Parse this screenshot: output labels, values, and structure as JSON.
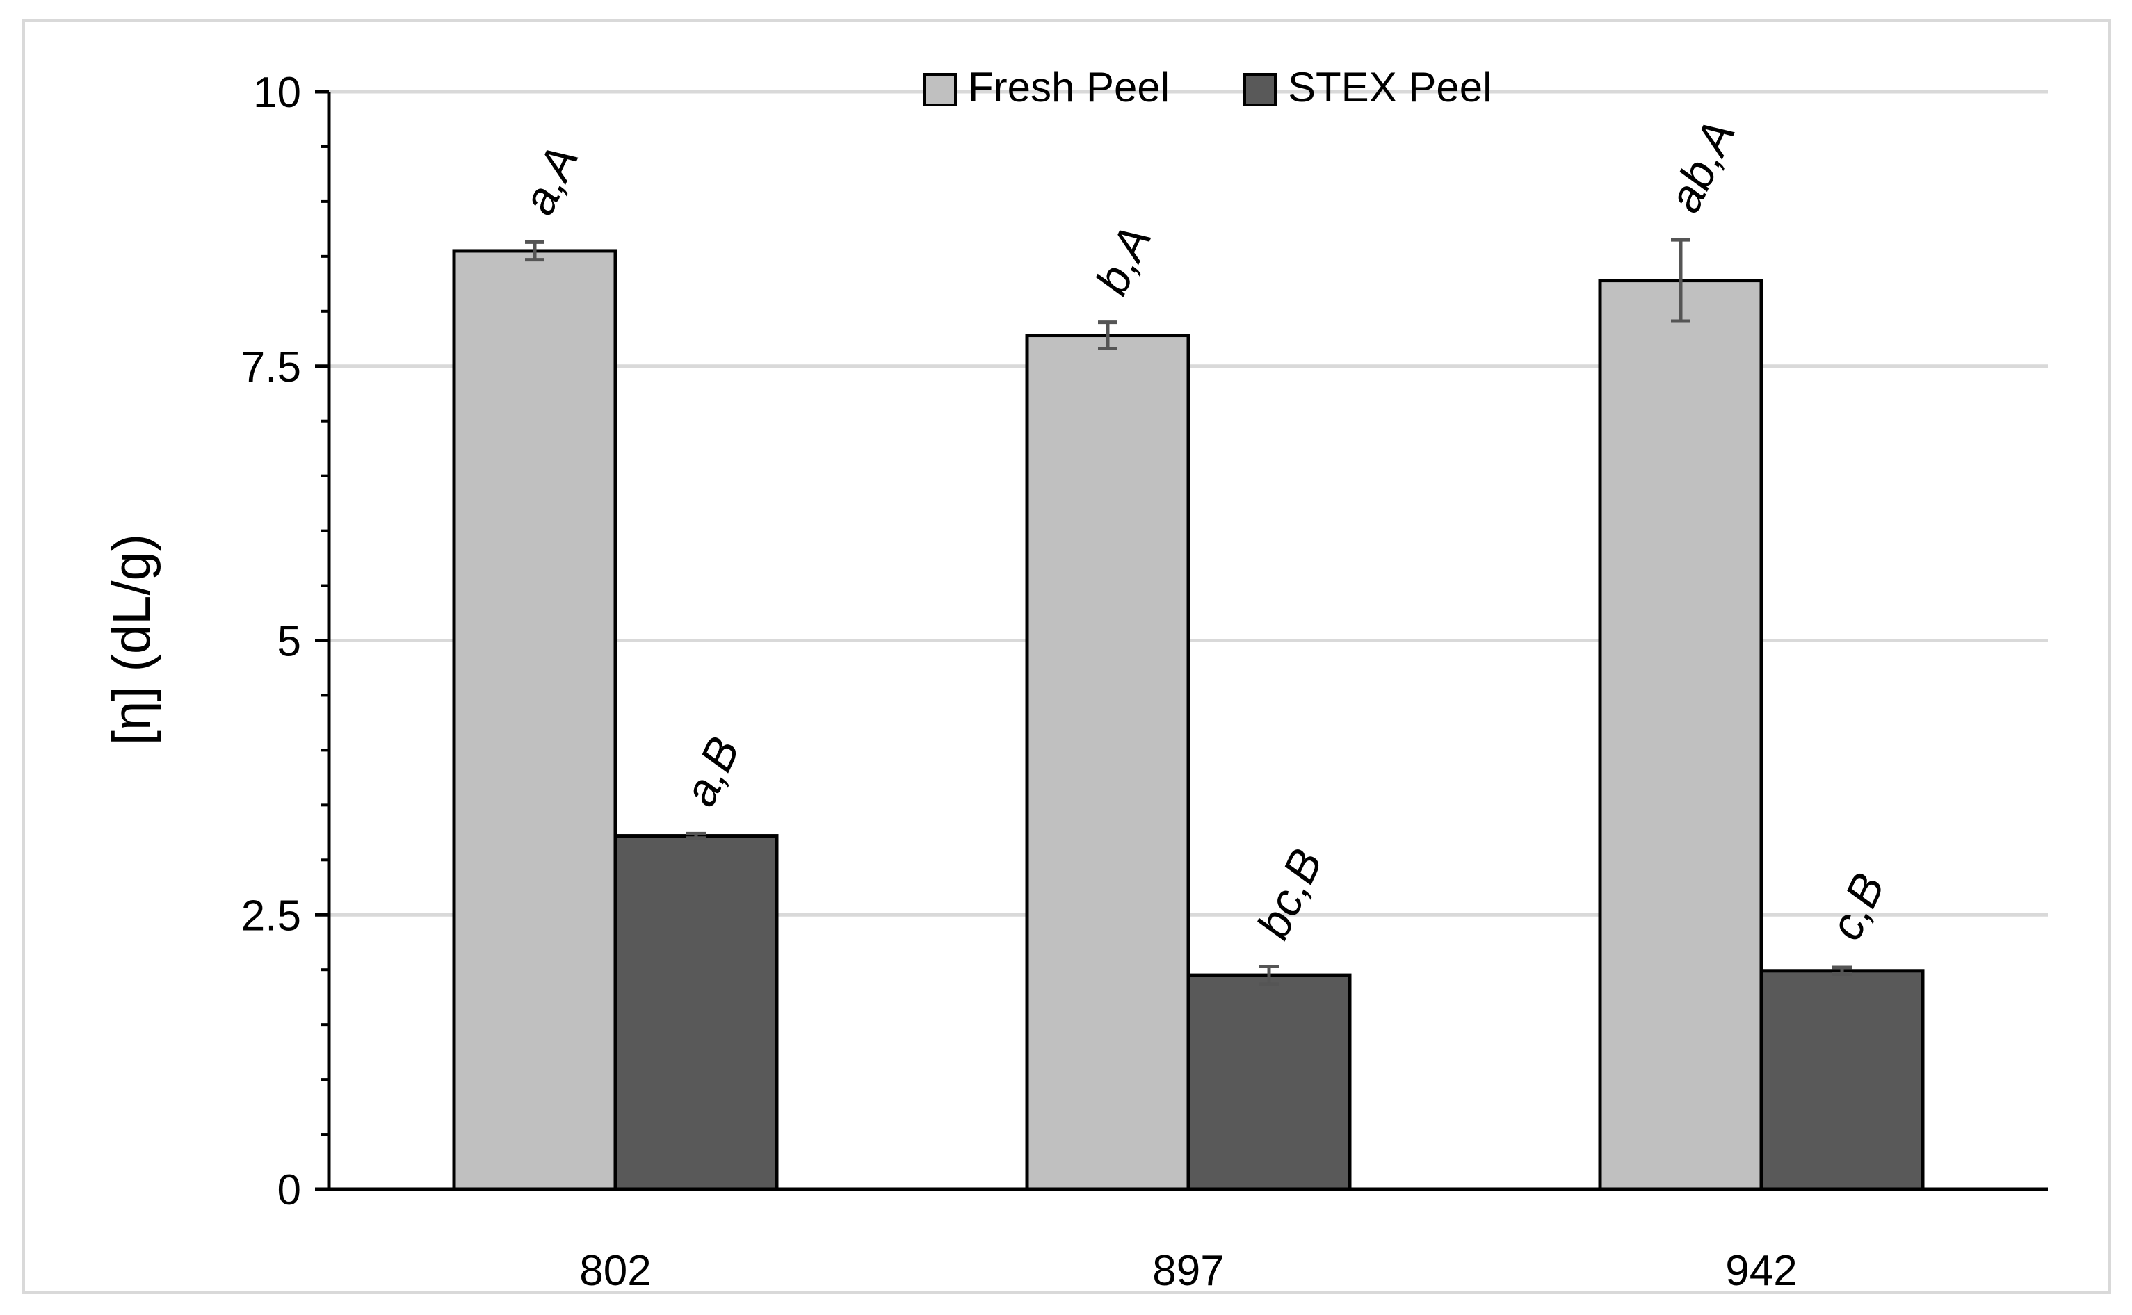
{
  "chart_data": {
    "type": "bar",
    "title": "",
    "xlabel": "",
    "ylabel": "[η] (dL/g)",
    "categories": [
      "802",
      "897",
      "942"
    ],
    "ylim": [
      0,
      10
    ],
    "yticks": [
      "0",
      "2.5",
      "5",
      "7.5",
      "10"
    ],
    "grid": true,
    "legend_position": "top-center",
    "series": [
      {
        "name": "Fresh Peel",
        "color": "#c0c0c0",
        "values": [
          8.55,
          7.78,
          8.28
        ],
        "errors": [
          0.08,
          0.12,
          0.37
        ],
        "annotations": [
          "a,A",
          "b,A",
          "ab,A"
        ]
      },
      {
        "name": "STEX Peel",
        "color": "#595959",
        "values": [
          3.22,
          1.95,
          1.99
        ],
        "errors": [
          0.02,
          0.08,
          0.03
        ],
        "annotations": [
          "a,B",
          "bc,B",
          "c,B"
        ]
      }
    ]
  }
}
